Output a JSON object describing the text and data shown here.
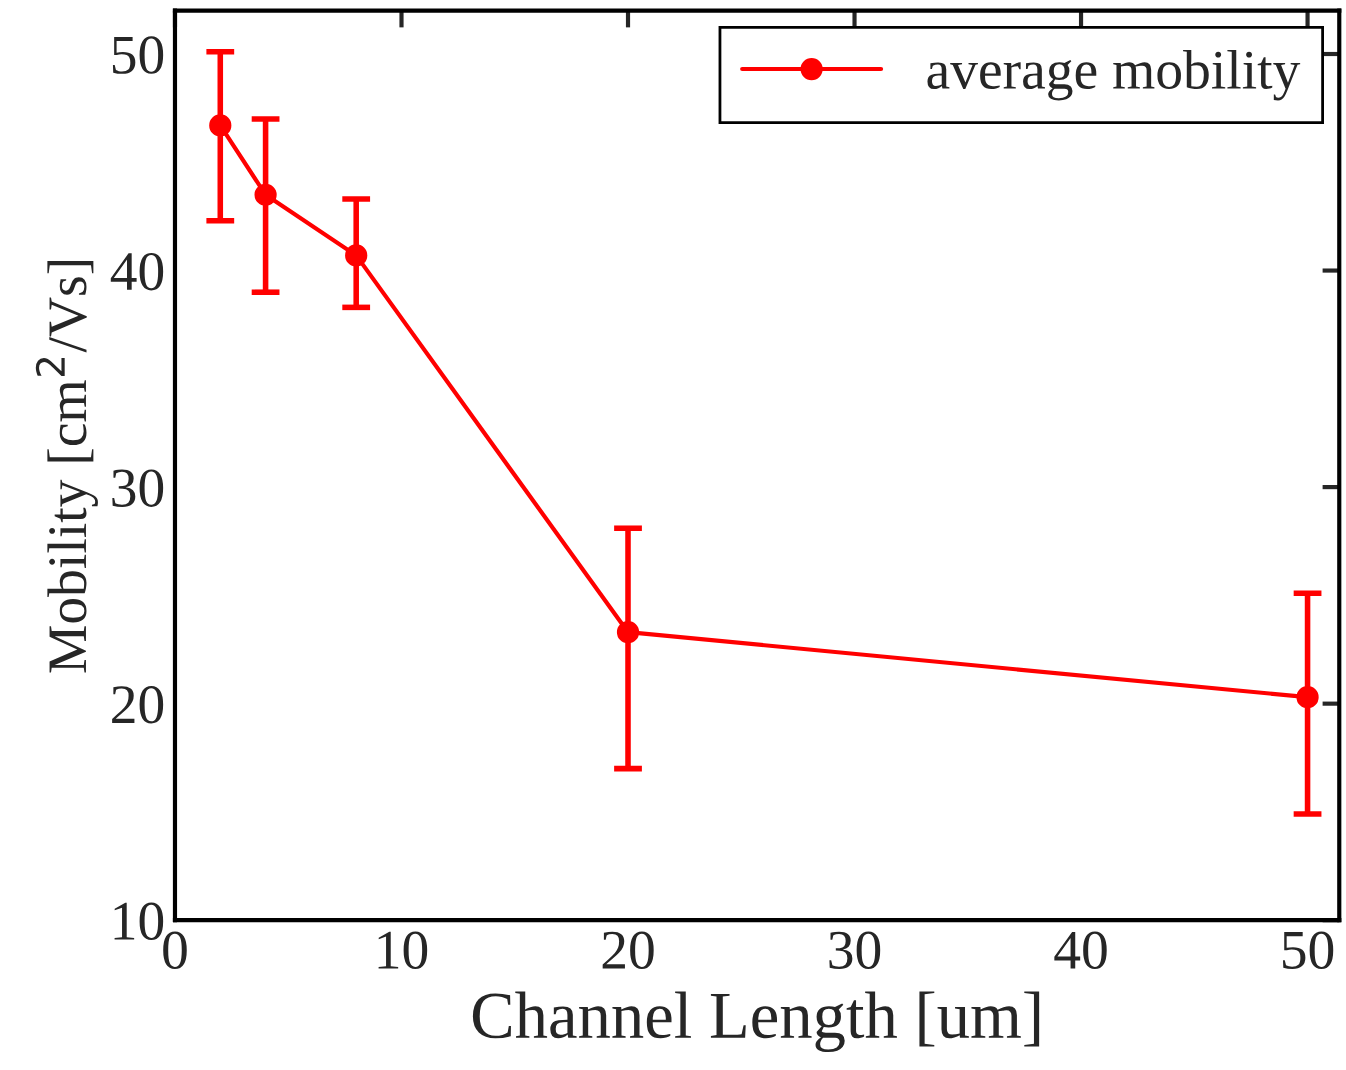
{
  "chart_data": {
    "type": "line",
    "xlabel": "Channel Length [um]",
    "ylabel": "Mobility [cm$^{2}$/Vs]",
    "x": [
      2,
      4,
      8,
      20,
      50
    ],
    "series": [
      {
        "name": "average mobility",
        "color": "#ff0000",
        "values": [
          46.7,
          43.5,
          40.7,
          23.3,
          20.3
        ],
        "errors": [
          [
            42.3,
            50.1
          ],
          [
            39.0,
            47.0
          ],
          [
            38.3,
            43.3
          ],
          [
            17.0,
            28.1
          ],
          [
            14.9,
            25.1
          ]
        ]
      }
    ],
    "xlim": [
      0,
      51.4
    ],
    "ylim": [
      10,
      52
    ],
    "xticks": [
      0,
      10,
      20,
      30,
      40,
      50
    ],
    "yticks": [
      10,
      20,
      30,
      40,
      50
    ],
    "grid": false,
    "legend": "top right",
    "marker": "circle",
    "line_style": "solid"
  }
}
